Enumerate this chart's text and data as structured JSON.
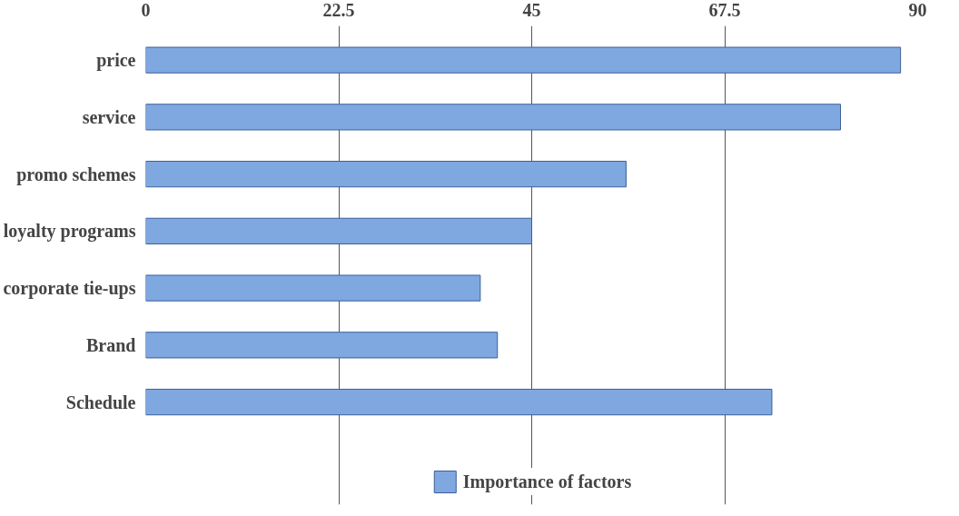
{
  "chart_data": {
    "type": "bar",
    "orientation": "horizontal",
    "categories": [
      "price",
      "service",
      "promo schemes",
      "loyalty programs",
      "corporate tie-ups",
      "Brand",
      "Schedule"
    ],
    "series": [
      {
        "name": "Importance of factors",
        "color": "#7fa8e0",
        "values": [
          88,
          81,
          56,
          45,
          39,
          41,
          73
        ]
      }
    ],
    "xlim": [
      0,
      90
    ],
    "xticks": [
      0,
      22.5,
      45,
      67.5,
      90
    ],
    "grid": "x",
    "legend": "bottom"
  }
}
